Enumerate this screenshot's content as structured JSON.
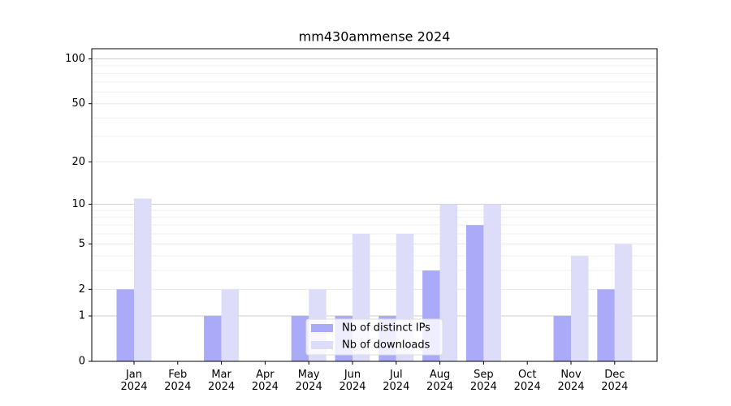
{
  "chart_data": {
    "type": "bar",
    "title": "mm430ammense 2024",
    "categories": [
      "Jan\n2024",
      "Feb\n2024",
      "Mar\n2024",
      "Apr\n2024",
      "May\n2024",
      "Jun\n2024",
      "Jul\n2024",
      "Aug\n2024",
      "Sep\n2024",
      "Oct\n2024",
      "Nov\n2024",
      "Dec\n2024"
    ],
    "series": [
      {
        "name": "Nb of distinct IPs",
        "color": "#aaaaf8",
        "values": [
          2,
          0,
          1,
          0,
          1,
          1,
          1,
          3,
          7,
          0,
          1,
          2
        ]
      },
      {
        "name": "Nb of downloads",
        "color": "#ddddfa",
        "values": [
          11,
          0,
          2,
          0,
          2,
          6,
          6,
          10,
          10,
          0,
          4,
          5
        ]
      }
    ],
    "yscale": "log1p",
    "ylim": [
      0,
      117
    ],
    "yticks": [
      0,
      1,
      2,
      5,
      10,
      20,
      50,
      100
    ],
    "grid": true,
    "legend": "lower center"
  }
}
